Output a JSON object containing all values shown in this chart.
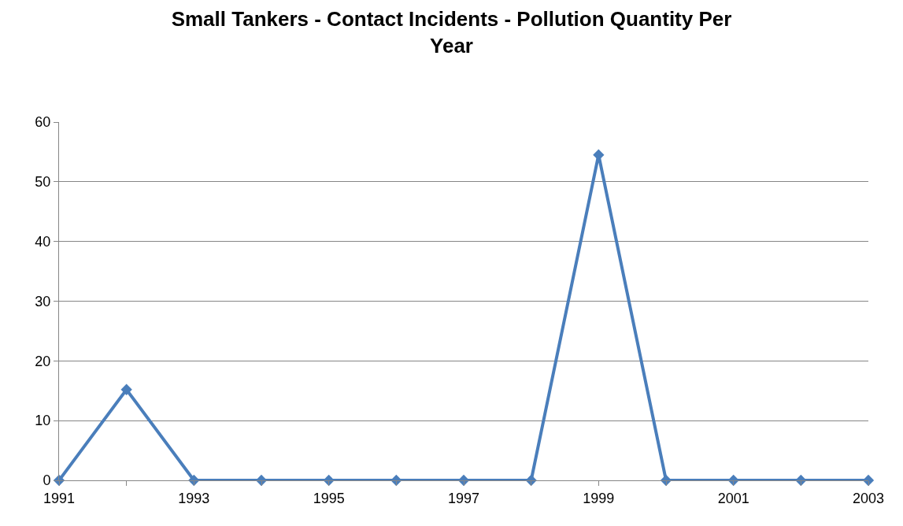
{
  "chart_data": {
    "type": "line",
    "title": "Small Tankers - Contact Incidents - Pollution Quantity Per Year",
    "x": [
      1991,
      1992,
      1993,
      1994,
      1995,
      1996,
      1997,
      1998,
      1999,
      2000,
      2001,
      2002,
      2003
    ],
    "series": [
      {
        "color": "#4a7ebb",
        "values": [
          0,
          15.2,
          0,
          0,
          0,
          0,
          0,
          0,
          54.5,
          0,
          0,
          0,
          0
        ]
      }
    ],
    "xlim": [
      1991,
      2003
    ],
    "xticks": [
      1991,
      {
        "value": 1992,
        "label": null
      },
      1993,
      {
        "value": 1994,
        "label": null
      },
      1995,
      {
        "value": 1996,
        "label": null
      },
      1997,
      {
        "value": 1998,
        "label": null
      },
      1999,
      {
        "value": 2000,
        "label": null
      },
      2001,
      {
        "value": 2002,
        "label": null
      },
      2003
    ],
    "ylim": [
      0,
      60
    ],
    "yticks": [
      0,
      10,
      20,
      30,
      40,
      50,
      60
    ],
    "grid": "y",
    "marker": "diamond",
    "line_style": "solid"
  }
}
